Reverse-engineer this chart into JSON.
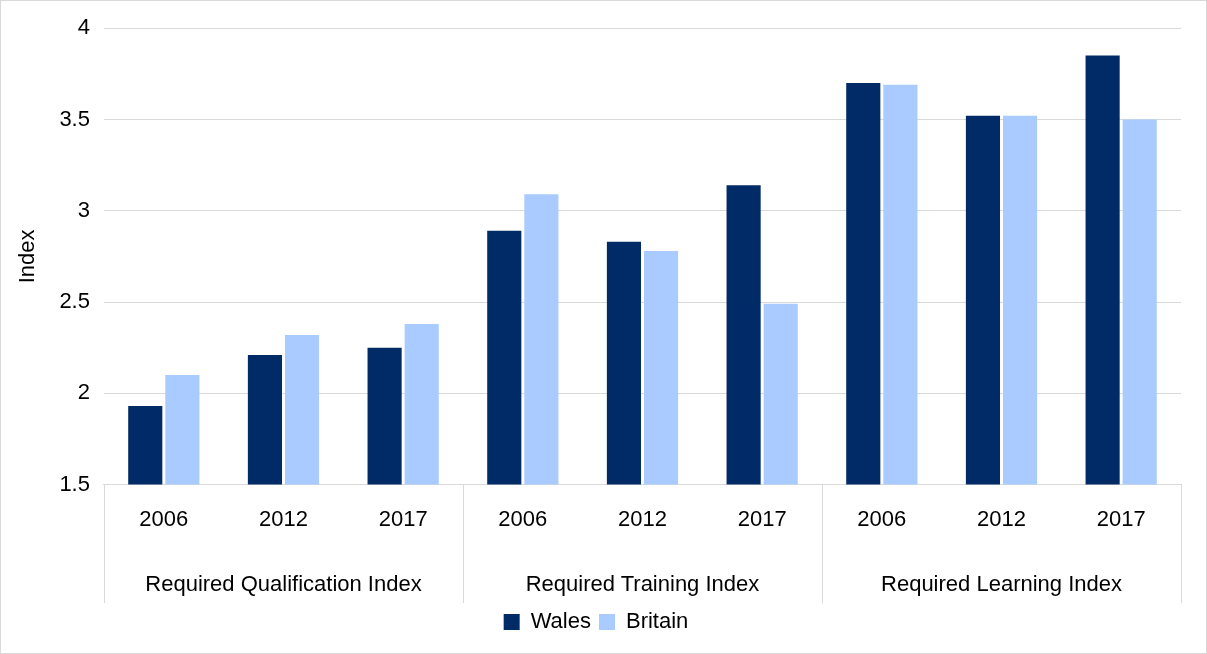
{
  "chart_data": {
    "type": "bar",
    "ylabel": "Index",
    "categories": [
      "2006",
      "2012",
      "2017",
      "2006",
      "2012",
      "2017",
      "2006",
      "2012",
      "2017"
    ],
    "annotations": [
      "Required Qualification Index",
      "Required Training Index",
      "Required Learning Index"
    ],
    "series": [
      {
        "name": "Wales",
        "color": "#002b66",
        "values": [
          1.93,
          2.21,
          2.25,
          2.89,
          2.83,
          3.14,
          3.7,
          3.52,
          3.85
        ]
      },
      {
        "name": "Britain",
        "color": "#a9cbff",
        "values": [
          2.1,
          2.32,
          2.38,
          3.09,
          2.78,
          2.49,
          3.69,
          3.52,
          3.5
        ]
      }
    ],
    "ylim": [
      1.5,
      4
    ],
    "yticks": [
      1.5,
      2,
      2.5,
      3,
      3.5,
      4
    ],
    "grid": "y",
    "legend": "bottom"
  }
}
